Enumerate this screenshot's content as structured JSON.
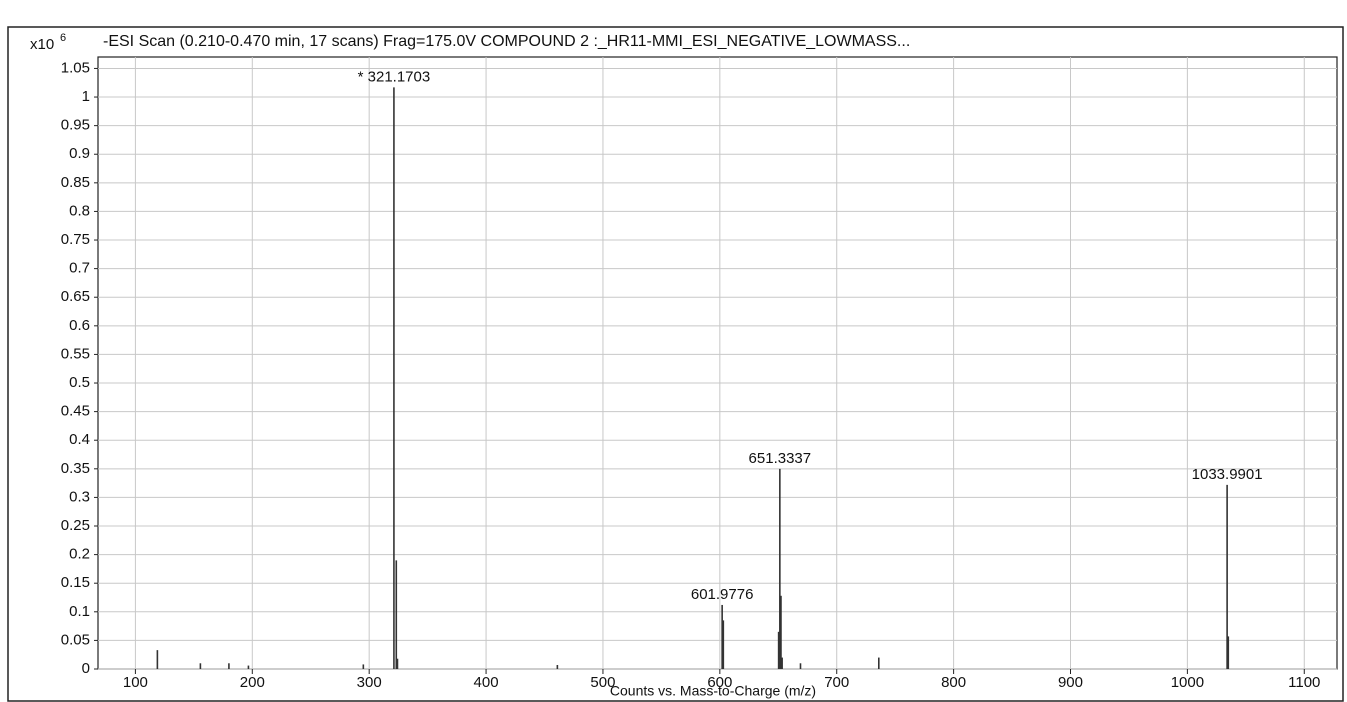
{
  "chart_data": {
    "type": "stem",
    "title": "-ESI Scan (0.210-0.470 min, 17 scans) Frag=175.0V COMPOUND 2 :_HR11-MMI_ESI_NEGATIVE_LOWMASS...",
    "y_multiplier": "x10",
    "y_exponent": "6",
    "xlabel": "Counts vs. Mass-to-Charge (m/z)",
    "x": [
      118.8,
      155.6,
      180,
      196.7,
      295,
      321.1703,
      323.2,
      324.2,
      461,
      601.9776,
      602.98,
      650.3,
      651.3337,
      652.3,
      653.3,
      669,
      736,
      1033.9901,
      1035
    ],
    "values": [
      0.033,
      0.01,
      0.01,
      0.006,
      0.008,
      1.017,
      0.19,
      0.018,
      0.007,
      0.112,
      0.085,
      0.065,
      0.35,
      0.128,
      0.02,
      0.01,
      0.02,
      0.322,
      0.057
    ],
    "x_labels": [
      null,
      null,
      null,
      null,
      null,
      "* 321.1703",
      null,
      null,
      null,
      "601.9776",
      null,
      null,
      "651.3337",
      null,
      null,
      null,
      null,
      "1033.9901",
      null
    ],
    "color": "#333333",
    "xlim": [
      68,
      1128
    ],
    "xticks": [
      100,
      200,
      300,
      400,
      500,
      600,
      700,
      800,
      900,
      1000,
      1100
    ],
    "ylim": [
      0,
      1.07
    ],
    "yticks": [
      0,
      0.05,
      0.1,
      0.15,
      0.2,
      0.25,
      0.3,
      0.35,
      0.4,
      0.45,
      0.5,
      0.55,
      0.6,
      0.65,
      0.7,
      0.75,
      0.8,
      0.85,
      0.9,
      0.95,
      1,
      1.05
    ],
    "grid": true
  }
}
